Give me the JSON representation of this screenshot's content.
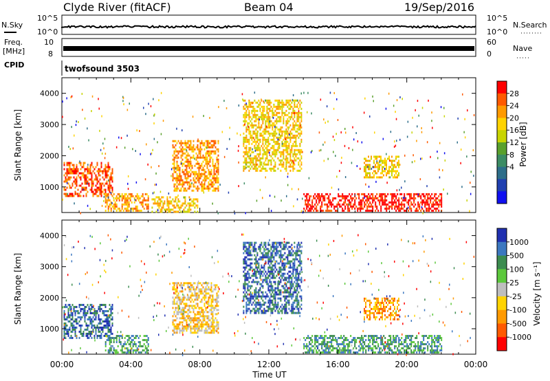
{
  "header": {
    "station": "Clyde River (fitACF)",
    "beam": "Beam 04",
    "date": "19/Sep/2016"
  },
  "top_panels": {
    "nsky_label": "N.Sky",
    "nsky_ticks": [
      "10^5",
      "10^0"
    ],
    "nsky_right_ticks": [
      "10^5",
      "10^0"
    ],
    "nsearch_label": "N.Search",
    "freq_label": "Freq.",
    "freq_unit": "[MHz]",
    "freq_ticks": [
      "10",
      "8"
    ],
    "nave_ticks": [
      "60",
      "0"
    ],
    "nave_label": "Nave",
    "cpid_label": "CPID",
    "cpid_value": "twofsound 3503"
  },
  "chart_data": [
    {
      "type": "heatmap",
      "name": "power",
      "ylabel": "Slant Range [km]",
      "yticks": [
        "4000",
        "3000",
        "2000",
        "1000"
      ],
      "ylim": [
        180,
        4500
      ],
      "xlim": [
        0,
        24
      ],
      "colorbar": {
        "label": "Power [dB]",
        "ticks": [
          "28",
          "24",
          "20",
          "16",
          "12",
          "8",
          "4"
        ],
        "colors": [
          "#ff0000",
          "#ff5a00",
          "#ff9a00",
          "#ffd300",
          "#c8d400",
          "#5aa02c",
          "#3c8c64",
          "#2d6e8a",
          "#2040b0",
          "#1010f0"
        ]
      },
      "regions": [
        {
          "t0": 0.1,
          "t1": 2.9,
          "r0": 700,
          "r1": 1800,
          "value": 24
        },
        {
          "t0": 2.5,
          "t1": 5.0,
          "r0": 250,
          "r1": 800,
          "value": 20
        },
        {
          "t0": 5.2,
          "t1": 7.9,
          "r0": 200,
          "r1": 700,
          "value": 16
        },
        {
          "t0": 6.4,
          "t1": 9.1,
          "r0": 900,
          "r1": 2500,
          "value": 20
        },
        {
          "t0": 10.5,
          "t1": 13.9,
          "r0": 1500,
          "r1": 3800,
          "value": 16
        },
        {
          "t0": 14.0,
          "t1": 22.0,
          "r0": 250,
          "r1": 800,
          "value": 28
        },
        {
          "t0": 17.5,
          "t1": 19.5,
          "r0": 1300,
          "r1": 2000,
          "value": 16
        }
      ]
    },
    {
      "type": "heatmap",
      "name": "velocity",
      "ylabel": "Slant Range [km]",
      "yticks": [
        "4000",
        "3000",
        "2000",
        "1000"
      ],
      "ylim": [
        180,
        4500
      ],
      "xlim": [
        0,
        24
      ],
      "xticks": [
        "00:00",
        "04:00",
        "08:00",
        "12:00",
        "16:00",
        "20:00",
        "00:00"
      ],
      "xlabel": "Time UT",
      "colorbar": {
        "label": "Velocity [m s⁻¹]",
        "ticks": [
          "1000",
          "500",
          "100",
          "25",
          "-25",
          "-100",
          "-500",
          "-1000"
        ],
        "colors": [
          "#2030b0",
          "#3c78c0",
          "#3c8c50",
          "#5cc83c",
          "#bebebe",
          "#ffd300",
          "#ff9a00",
          "#ff5a00",
          "#ff0000"
        ]
      },
      "regions": [
        {
          "t0": 0.1,
          "t1": 2.9,
          "r0": 700,
          "r1": 1800,
          "value": 500
        },
        {
          "t0": 2.5,
          "t1": 5.0,
          "r0": 250,
          "r1": 800,
          "value": 100
        },
        {
          "t0": 6.4,
          "t1": 9.1,
          "r0": 900,
          "r1": 2500,
          "value": -100
        },
        {
          "t0": 10.5,
          "t1": 13.9,
          "r0": 1500,
          "r1": 3800,
          "value": 500
        },
        {
          "t0": 14.0,
          "t1": 22.0,
          "r0": 250,
          "r1": 800,
          "value": 100
        },
        {
          "t0": 17.5,
          "t1": 19.5,
          "r0": 1300,
          "r1": 2000,
          "value": -500
        }
      ]
    }
  ]
}
